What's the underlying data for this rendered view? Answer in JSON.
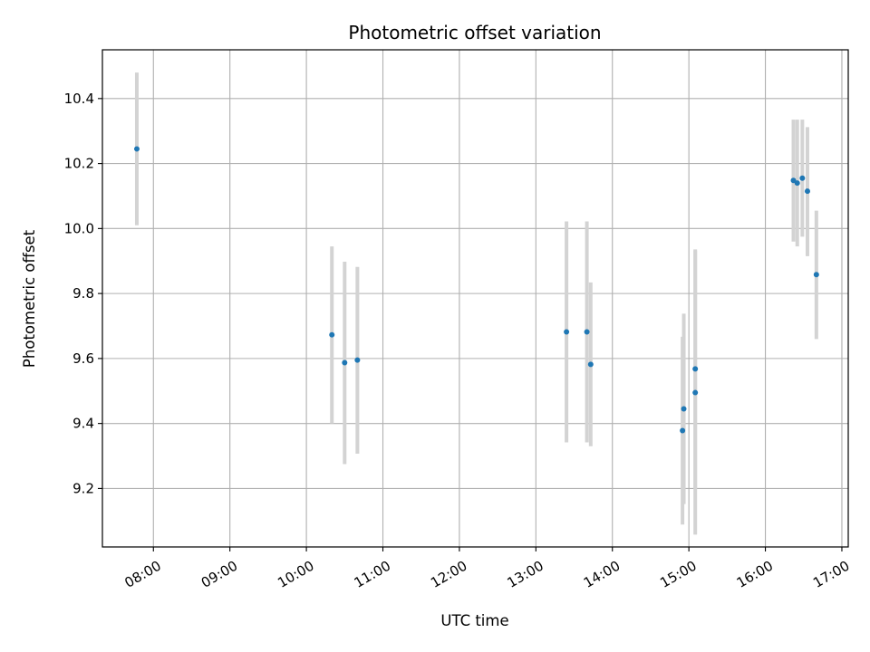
{
  "chart_data": {
    "type": "scatter",
    "title": "Photometric offset variation",
    "xlabel": "UTC time",
    "ylabel": "Photometric offset",
    "xlim": [
      "07:20",
      "17:05"
    ],
    "ylim": [
      9.02,
      10.55
    ],
    "x_ticks": [
      "08:00",
      "09:00",
      "10:00",
      "11:00",
      "12:00",
      "13:00",
      "14:00",
      "15:00",
      "16:00",
      "17:00"
    ],
    "y_ticks": [
      9.2,
      9.4,
      9.6,
      9.8,
      10.0,
      10.2,
      10.4
    ],
    "grid": true,
    "point_color": "#1f77b4",
    "errorbar_color": "#d3d3d3",
    "points": [
      {
        "time": "07:47",
        "y": 10.245,
        "yerr_low": 10.01,
        "yerr_high": 10.48
      },
      {
        "time": "10:20",
        "y": 9.673,
        "yerr_low": 9.4,
        "yerr_high": 9.945
      },
      {
        "time": "10:30",
        "y": 9.587,
        "yerr_low": 9.275,
        "yerr_high": 9.898
      },
      {
        "time": "10:40",
        "y": 9.595,
        "yerr_low": 9.307,
        "yerr_high": 9.882
      },
      {
        "time": "13:24",
        "y": 9.682,
        "yerr_low": 9.342,
        "yerr_high": 10.022
      },
      {
        "time": "13:40",
        "y": 9.682,
        "yerr_low": 9.342,
        "yerr_high": 10.022
      },
      {
        "time": "13:43",
        "y": 9.582,
        "yerr_low": 9.33,
        "yerr_high": 9.834
      },
      {
        "time": "14:55",
        "y": 9.378,
        "yerr_low": 9.089,
        "yerr_high": 9.667
      },
      {
        "time": "14:56",
        "y": 9.445,
        "yerr_low": 9.152,
        "yerr_high": 9.738
      },
      {
        "time": "15:05",
        "y": 9.495,
        "yerr_low": 9.058,
        "yerr_high": 9.932
      },
      {
        "time": "15:05",
        "y": 9.568,
        "yerr_low": 9.2,
        "yerr_high": 9.936
      },
      {
        "time": "16:22",
        "y": 10.148,
        "yerr_low": 9.96,
        "yerr_high": 10.335
      },
      {
        "time": "16:25",
        "y": 10.14,
        "yerr_low": 9.945,
        "yerr_high": 10.335
      },
      {
        "time": "16:29",
        "y": 10.155,
        "yerr_low": 9.975,
        "yerr_high": 10.335
      },
      {
        "time": "16:33",
        "y": 10.115,
        "yerr_low": 9.915,
        "yerr_high": 10.312
      },
      {
        "time": "16:40",
        "y": 9.858,
        "yerr_low": 9.66,
        "yerr_high": 10.055
      }
    ]
  }
}
